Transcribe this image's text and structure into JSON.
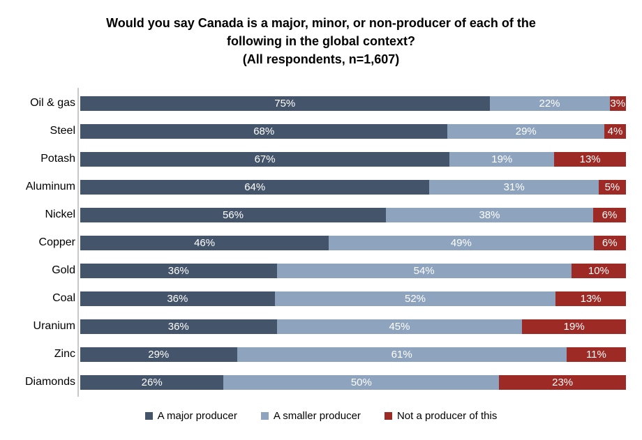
{
  "title": {
    "line1": "Would you say Canada is a major, minor, or non-producer of each of the",
    "line2": "following in the global context?",
    "line3": "(All respondents, n=1,607)"
  },
  "chart_data": {
    "type": "bar",
    "orientation": "horizontal",
    "stacked": "100%",
    "title": "Would you say Canada is a major, minor, or non-producer of each of the following in the global context? (All respondents, n=1,607)",
    "categories": [
      "Oil & gas",
      "Steel",
      "Potash",
      "Aluminum",
      "Nickel",
      "Copper",
      "Gold",
      "Coal",
      "Uranium",
      "Zinc",
      "Diamonds"
    ],
    "series": [
      {
        "name": "A major producer",
        "color": "#44546A",
        "values": [
          75,
          68,
          67,
          64,
          56,
          46,
          36,
          36,
          36,
          29,
          26
        ]
      },
      {
        "name": "A smaller producer",
        "color": "#8EA3BD",
        "values": [
          22,
          29,
          19,
          31,
          38,
          49,
          54,
          52,
          45,
          61,
          50
        ]
      },
      {
        "name": "Not a producer of this",
        "color": "#9E2A25",
        "values": [
          3,
          4,
          13,
          5,
          6,
          6,
          10,
          13,
          19,
          11,
          23
        ]
      }
    ],
    "value_suffix": "%",
    "xlabel": "",
    "ylabel": "",
    "xlim": [
      0,
      100
    ],
    "grid": false,
    "legend_position": "bottom",
    "axis_line_color": "#C9C9C9",
    "bar_label_color": "#FFFFFF"
  },
  "legend": {
    "items": [
      {
        "label": "A major producer",
        "color": "#44546A"
      },
      {
        "label": "A smaller producer",
        "color": "#8EA3BD"
      },
      {
        "label": "Not a producer of this",
        "color": "#9E2A25"
      }
    ]
  }
}
